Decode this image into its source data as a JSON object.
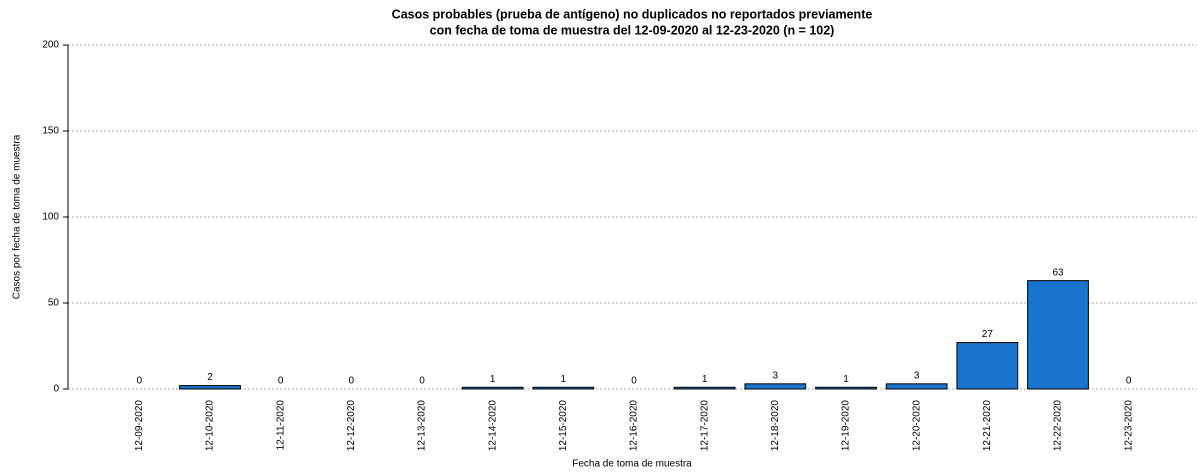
{
  "chart_data": {
    "type": "bar",
    "title": [
      "Casos probables (prueba de antígeno) no duplicados no reportados previamente",
      "con fecha de toma de muestra del 12-09-2020 al 12-23-2020 (n = 102)"
    ],
    "x_label": "Fecha de toma de muestra",
    "y_label": "Casos por fecha de toma de muestra",
    "categories": [
      "12-09-2020",
      "12-10-2020",
      "12-11-2020",
      "12-12-2020",
      "12-13-2020",
      "12-14-2020",
      "12-15-2020",
      "12-16-2020",
      "12-17-2020",
      "12-18-2020",
      "12-19-2020",
      "12-20-2020",
      "12-21-2020",
      "12-22-2020",
      "12-23-2020"
    ],
    "values": [
      0,
      2,
      0,
      0,
      0,
      1,
      1,
      0,
      1,
      3,
      1,
      3,
      27,
      63,
      0
    ],
    "color": "#1874cd",
    "ylim": [
      0,
      200
    ],
    "yticks": [
      0,
      50,
      100,
      150,
      200
    ],
    "grid": true
  }
}
